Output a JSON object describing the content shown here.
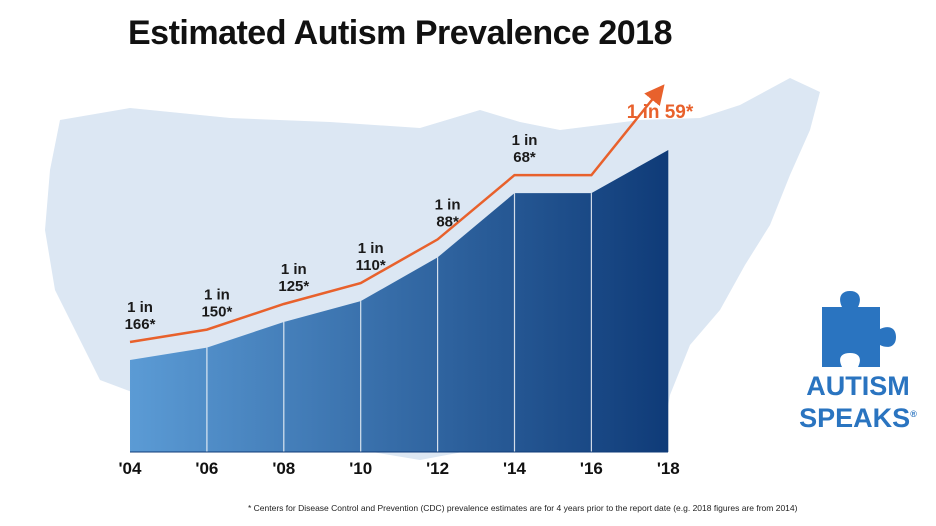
{
  "title": "Estimated Autism Prevalence 2018",
  "footnote": "* Centers for Disease Control and Prevention (CDC) prevalence estimates are for 4 years prior to the report date (e.g. 2018 figures are from 2014)",
  "logo": {
    "line1": "AUTISM",
    "line2": "SPEAKS",
    "mark": "®",
    "icon": "puzzle-piece-icon"
  },
  "colors": {
    "bar_light": "#5b9bd5",
    "bar_dark": "#0f3b78",
    "trend": "#e8612c",
    "map": "#dce7f3",
    "logo": "#2a74c0"
  },
  "chart_data": {
    "type": "area",
    "title": "Estimated Autism Prevalence 2018",
    "xlabel": "",
    "ylabel": "",
    "categories": [
      "'04",
      "'06",
      "'08",
      "'10",
      "'12",
      "'14",
      "'16",
      "'18"
    ],
    "prevalence_labels": [
      {
        "first": "1 in",
        "second": "166*"
      },
      {
        "first": "1 in",
        "second": "150*"
      },
      {
        "first": "1 in",
        "second": "125*"
      },
      {
        "first": "1 in",
        "second": "110*"
      },
      {
        "first": "1 in",
        "second": "88*"
      },
      {
        "first": "1 in",
        "second": "68*"
      },
      {
        "first": "1 in 59*",
        "second": ""
      }
    ],
    "one_in_values": [
      166,
      150,
      125,
      110,
      88,
      68,
      68,
      59
    ],
    "grid": false,
    "legend": "none"
  }
}
